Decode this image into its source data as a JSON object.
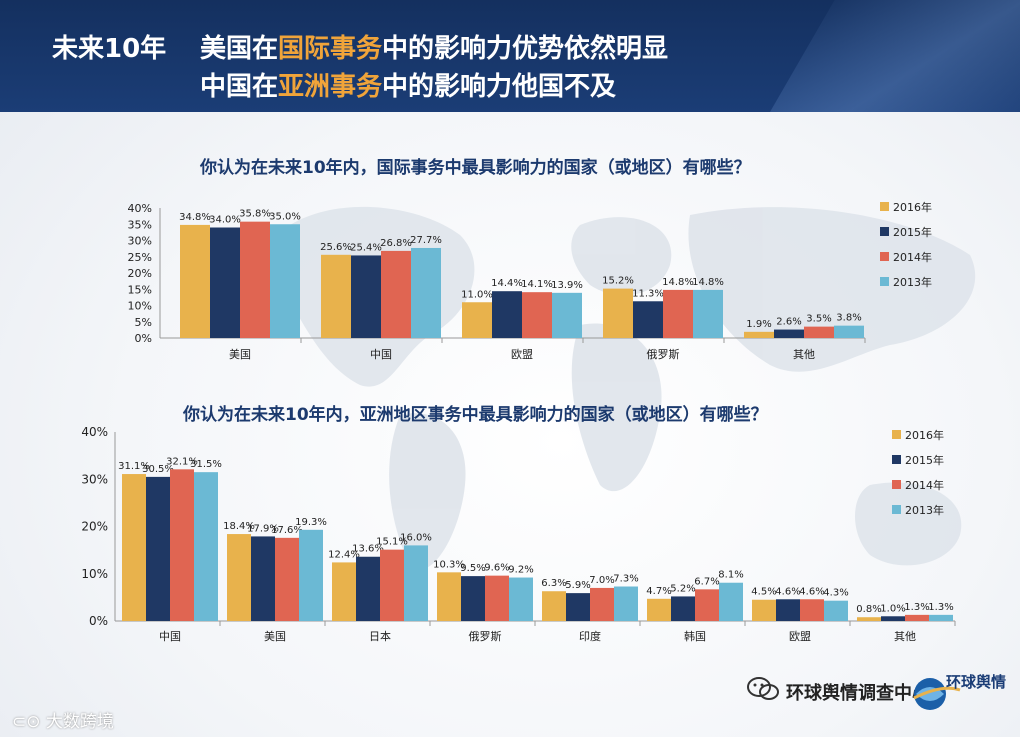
{
  "header": {
    "left_label": "未来10年",
    "line1": {
      "pre": "美国在",
      "highlight": "国际事务",
      "post": "中的影响力优势依然明显"
    },
    "line2": {
      "pre": "中国在",
      "highlight": "亚洲事务",
      "post": "中的影响力他国不及"
    }
  },
  "colors": {
    "2016年": "#e8b24c",
    "2015年": "#1f3864",
    "2014年": "#e06552",
    "2013年": "#6bb9d4",
    "header_bg": "#1b3d76",
    "highlight": "#f0a43a",
    "title_text": "#1c3a6e"
  },
  "chart_data": [
    {
      "type": "bar",
      "title": "你认为在未来10年内，国际事务中最具影响力的国家（或地区）有哪些？",
      "categories": [
        "美国",
        "中国",
        "欧盟",
        "俄罗斯",
        "其他"
      ],
      "series": [
        {
          "name": "2016年",
          "values": [
            34.8,
            25.6,
            11.0,
            15.2,
            1.9
          ]
        },
        {
          "name": "2015年",
          "values": [
            34.0,
            25.4,
            14.4,
            11.3,
            2.6
          ]
        },
        {
          "name": "2014年",
          "values": [
            35.8,
            26.8,
            14.1,
            14.8,
            3.5
          ]
        },
        {
          "name": "2013年",
          "values": [
            35.0,
            27.7,
            13.9,
            14.8,
            3.8
          ]
        }
      ],
      "ylim": [
        0,
        40
      ],
      "yticks": [
        "0%",
        "5%",
        "10%",
        "15%",
        "20%",
        "25%",
        "30%",
        "35%",
        "40%"
      ],
      "labels": [
        [
          "34.8%",
          "25.6%",
          "11.0%",
          "15.2%",
          "1.9%"
        ],
        [
          "34.0%",
          "25.4%",
          "14.4%",
          "11.3%",
          "2.6%"
        ],
        [
          "35.8%",
          "26.8%",
          "14.1%",
          "14.8%",
          "3.5%"
        ],
        [
          "35.0%",
          "27.7%",
          "13.9%",
          "14.8%",
          "3.8%"
        ]
      ],
      "legend": [
        "2016年",
        "2015年",
        "2014年",
        "2013年"
      ]
    },
    {
      "type": "bar",
      "title": "你认为在未来10年内，亚洲地区事务中最具影响力的国家（或地区）有哪些？",
      "categories": [
        "中国",
        "美国",
        "日本",
        "俄罗斯",
        "印度",
        "韩国",
        "欧盟",
        "其他"
      ],
      "series": [
        {
          "name": "2016年",
          "values": [
            31.1,
            18.4,
            12.4,
            10.3,
            6.3,
            4.7,
            4.5,
            0.8
          ]
        },
        {
          "name": "2015年",
          "values": [
            30.5,
            17.9,
            13.6,
            9.5,
            5.9,
            5.2,
            4.6,
            1.0
          ]
        },
        {
          "name": "2014年",
          "values": [
            32.1,
            17.6,
            15.1,
            9.6,
            7.0,
            6.7,
            4.6,
            1.3
          ]
        },
        {
          "name": "2013年",
          "values": [
            31.5,
            19.3,
            16.0,
            9.2,
            7.3,
            8.1,
            4.3,
            1.3
          ]
        }
      ],
      "ylim": [
        0,
        40
      ],
      "yticks": [
        "0%",
        "10%",
        "20%",
        "30%",
        "40%"
      ],
      "labels": [
        [
          "31.1%",
          "18.4%",
          "12.4%",
          "10.3%",
          "6.3%",
          "4.7%",
          "4.5%",
          "0.8%"
        ],
        [
          "30.5%",
          "17.9%",
          "13.6%",
          "9.5%",
          "5.9%",
          "5.2%",
          "4.6%",
          "1.0%"
        ],
        [
          "32.1%",
          "17.6%",
          "15.1%",
          "9.6%",
          "7.0%",
          "6.7%",
          "4.6%",
          "1.3%"
        ],
        [
          "31.5%",
          "19.3%",
          "16.0%",
          "9.2%",
          "7.3%",
          "8.1%",
          "4.3%",
          "1.3%"
        ]
      ],
      "legend": [
        "2016年",
        "2015年",
        "2014年",
        "2013年"
      ]
    }
  ],
  "footer": {
    "watermark_left": "大数跨境",
    "watermark_right": "环球舆情调查中心",
    "logo_text": "环球舆情"
  }
}
